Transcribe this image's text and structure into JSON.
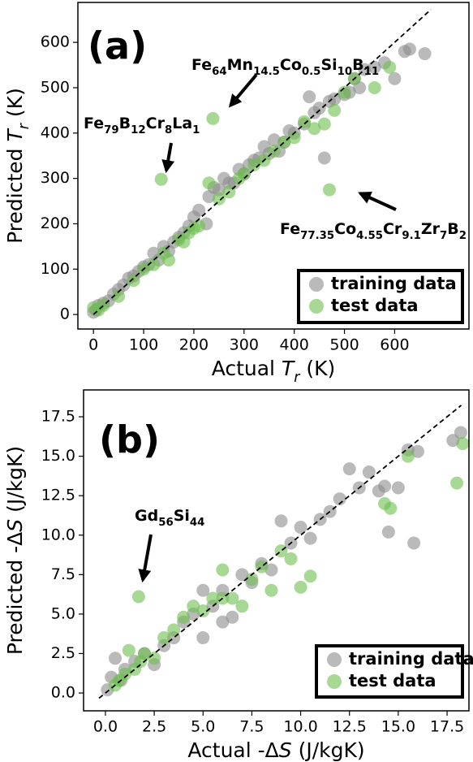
{
  "chart_data": [
    {
      "type": "scatter",
      "panel_label": "(a)",
      "xlabel": [
        {
          "text": "Actual "
        },
        {
          "text": "T",
          "style": "italic"
        },
        {
          "text": "r",
          "style": "italic-sub"
        },
        {
          "text": " (K)"
        }
      ],
      "ylabel": [
        {
          "text": "Predicted "
        },
        {
          "text": "T",
          "style": "italic"
        },
        {
          "text": "r",
          "style": "italic-sub"
        },
        {
          "text": " (K)"
        }
      ],
      "xlim": [
        -31,
        748
      ],
      "ylim": [
        -32,
        688
      ],
      "xticks": [
        0,
        100,
        200,
        300,
        400,
        500,
        600
      ],
      "yticks": [
        0,
        100,
        200,
        300,
        400,
        500,
        600
      ],
      "legend": "lower right",
      "series": [
        {
          "name": "training data",
          "color": "#8c8c8c",
          "x": [
            0,
            5,
            10,
            20,
            30,
            40,
            50,
            60,
            70,
            80,
            90,
            100,
            110,
            120,
            130,
            140,
            150,
            160,
            170,
            180,
            190,
            200,
            210,
            225,
            230,
            240,
            250,
            260,
            270,
            280,
            290,
            300,
            310,
            320,
            330,
            340,
            350,
            360,
            370,
            380,
            390,
            400,
            420,
            430,
            440,
            450,
            460,
            470,
            480,
            500,
            510,
            520,
            530,
            540,
            560,
            580,
            600,
            620,
            630,
            660
          ],
          "y": [
            5,
            10,
            20,
            25,
            30,
            45,
            55,
            65,
            80,
            85,
            95,
            105,
            110,
            135,
            120,
            150,
            140,
            160,
            170,
            180,
            195,
            215,
            230,
            200,
            260,
            280,
            275,
            300,
            290,
            290,
            320,
            310,
            330,
            340,
            345,
            370,
            355,
            385,
            360,
            380,
            405,
            400,
            420,
            480,
            445,
            455,
            345,
            470,
            475,
            485,
            490,
            520,
            500,
            540,
            545,
            555,
            520,
            580,
            585,
            575
          ]
        },
        {
          "name": "test data",
          "color": "#6cbf4e",
          "x": [
            0,
            10,
            20,
            50,
            80,
            100,
            120,
            140,
            150,
            170,
            180,
            190,
            200,
            210,
            230,
            250,
            270,
            290,
            300,
            320,
            340,
            360,
            380,
            400,
            420,
            440,
            460,
            480,
            500,
            520,
            560,
            590,
            135,
            238,
            470
          ],
          "y": [
            15,
            10,
            20,
            40,
            75,
            100,
            110,
            135,
            120,
            165,
            160,
            180,
            190,
            195,
            290,
            255,
            270,
            300,
            310,
            330,
            340,
            360,
            380,
            390,
            425,
            410,
            420,
            450,
            490,
            520,
            500,
            545,
            298,
            432,
            275
          ]
        }
      ],
      "annotations": [
        {
          "parts": [
            "Fe",
            "64",
            "Mn",
            "14.5",
            "Co",
            "0.5",
            "Si",
            "10",
            "B",
            "11"
          ]
        },
        {
          "parts": [
            "Fe",
            "79",
            "B",
            "12",
            "Cr",
            "8",
            "La",
            "1"
          ]
        },
        {
          "parts": [
            "Fe",
            "77.35",
            "Co",
            "4.55",
            "Cr",
            "9.1",
            "Zr",
            "7",
            "B",
            "2"
          ]
        }
      ]
    },
    {
      "type": "scatter",
      "panel_label": "(b)",
      "xlabel": [
        {
          "text": "Actual -Δ"
        },
        {
          "text": "S",
          "style": "italic"
        },
        {
          "text": " (J/kgK)"
        }
      ],
      "ylabel": [
        {
          "text": "Predicted -Δ"
        },
        {
          "text": "S",
          "style": "italic"
        },
        {
          "text": " (J/kgK)"
        }
      ],
      "xlim": [
        -1.12,
        18.62
      ],
      "ylim": [
        -1.13,
        19.2
      ],
      "xticks": [
        {
          "value": 0,
          "label": "0.0"
        },
        {
          "value": 2.5,
          "label": "2.5"
        },
        {
          "value": 5,
          "label": "5.0"
        },
        {
          "value": 7.5,
          "label": "7.5"
        },
        {
          "value": 10,
          "label": "10.0"
        },
        {
          "value": 12.5,
          "label": "12.5"
        },
        {
          "value": 15,
          "label": "15.0"
        },
        {
          "value": 17.5,
          "label": "17.5"
        }
      ],
      "yticks": [
        {
          "value": 0,
          "label": "0.0"
        },
        {
          "value": 2.5,
          "label": "2.5"
        },
        {
          "value": 5,
          "label": "5.0"
        },
        {
          "value": 7.5,
          "label": "7.5"
        },
        {
          "value": 10,
          "label": "10.0"
        },
        {
          "value": 12.5,
          "label": "12.5"
        },
        {
          "value": 15,
          "label": "15.0"
        },
        {
          "value": 17.5,
          "label": "17.5"
        }
      ],
      "legend": "lower right",
      "series": [
        {
          "name": "training data",
          "color": "#8c8c8c",
          "x": [
            0.1,
            0.3,
            0.5,
            0.8,
            1.0,
            1.5,
            2.0,
            2.5,
            3.0,
            3.5,
            4.0,
            4.5,
            5.0,
            5.5,
            6.0,
            6.5,
            7.0,
            7.5,
            8.0,
            8.5,
            9.0,
            9.5,
            10.0,
            10.5,
            11.0,
            11.5,
            12.0,
            12.5,
            13.0,
            13.5,
            14.0,
            14.5,
            15.0,
            15.5,
            16.0,
            17.8,
            18.2,
            14.3,
            15.8,
            5.0,
            6.0
          ],
          "y": [
            0.2,
            1.0,
            2.2,
            0.8,
            1.5,
            2.0,
            2.5,
            1.8,
            3.0,
            3.5,
            4.5,
            5.0,
            6.5,
            5.5,
            6.5,
            4.8,
            7.5,
            7.0,
            8.2,
            7.8,
            10.9,
            9.5,
            10.5,
            9.8,
            11.0,
            11.5,
            12.3,
            14.2,
            13.0,
            14.0,
            12.8,
            10.2,
            13.0,
            15.4,
            15.3,
            16.0,
            16.5,
            13.1,
            9.5,
            3.5,
            4.5
          ]
        },
        {
          "name": "test data",
          "color": "#6cbf4e",
          "x": [
            0.5,
            0.7,
            1.0,
            1.2,
            1.5,
            1.8,
            2.0,
            2.5,
            3.0,
            3.5,
            4.0,
            4.5,
            5.0,
            5.5,
            6.0,
            6.5,
            7.0,
            7.5,
            8.0,
            8.5,
            9.0,
            9.5,
            10.0,
            10.5,
            14.3,
            14.6,
            15.5,
            18.0,
            18.3,
            1.7,
            6.0
          ],
          "y": [
            0.5,
            0.8,
            1.2,
            2.7,
            1.5,
            2.0,
            2.5,
            2.2,
            3.5,
            4.0,
            4.8,
            5.5,
            5.2,
            6.0,
            7.8,
            6.0,
            5.5,
            7.2,
            8.0,
            6.5,
            9.0,
            8.5,
            6.7,
            7.4,
            12.0,
            11.7,
            15.0,
            13.3,
            15.8,
            6.1,
            6.0
          ]
        }
      ],
      "annotations": [
        {
          "parts": [
            "Gd",
            "56",
            "Si",
            "44"
          ]
        }
      ]
    }
  ]
}
